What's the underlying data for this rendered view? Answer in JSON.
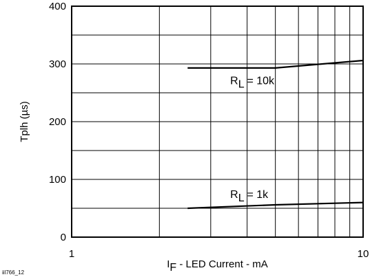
{
  "chart_data": {
    "type": "line",
    "title": "",
    "xlabel_prefix": "I",
    "xlabel_sub": "F",
    "xlabel_rest": " - LED Current - mA",
    "ylabel": "Tplh (µs)",
    "xscale": "log",
    "xlim": [
      1,
      10
    ],
    "ylim": [
      0,
      400
    ],
    "xticks": [
      1,
      10
    ],
    "yticks": [
      0,
      100,
      200,
      300,
      400
    ],
    "grid": true,
    "series": [
      {
        "x": [
          2.5,
          5,
          10
        ],
        "y": [
          293,
          293,
          306
        ]
      },
      {
        "x": [
          2.5,
          5,
          10
        ],
        "y": [
          50,
          56,
          60
        ]
      }
    ],
    "annotations": [
      {
        "prefix": "R",
        "sub": "L",
        "rest": " = 10k",
        "x": 3.5,
        "y": 272
      },
      {
        "prefix": "R",
        "sub": "L",
        "rest": " = 1k",
        "x": 3.5,
        "y": 75
      }
    ],
    "figure_id": "iil766_12"
  }
}
